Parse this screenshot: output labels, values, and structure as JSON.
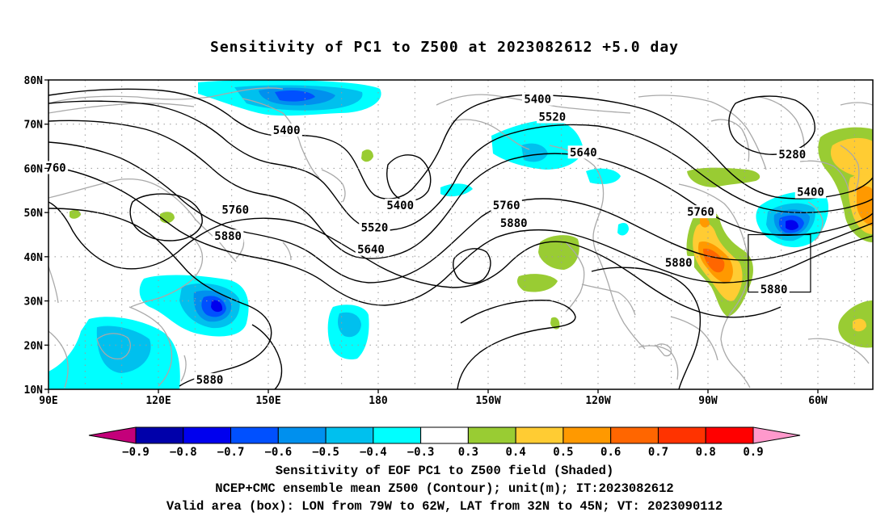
{
  "title": "Sensitivity of PC1 to Z500 at 2023082612 +5.0 day",
  "axes": {
    "lat_labels": [
      "80N",
      "70N",
      "60N",
      "50N",
      "40N",
      "30N",
      "20N",
      "10N"
    ],
    "lon_labels": [
      "90E",
      "120E",
      "150E",
      "180",
      "150W",
      "120W",
      "90W",
      "60W"
    ]
  },
  "contour_labels": [
    {
      "text": "5400",
      "lon": 155,
      "lat": 68.5
    },
    {
      "text": "5400",
      "lon": 186,
      "lat": 51.5
    },
    {
      "text": "5400",
      "lon": -136.5,
      "lat": 75.5
    },
    {
      "text": "5520",
      "lon": -132.5,
      "lat": 71.5
    },
    {
      "text": "5640",
      "lon": -124,
      "lat": 63.5
    },
    {
      "text": "5280",
      "lon": -67,
      "lat": 63
    },
    {
      "text": "5400",
      "lon": -62,
      "lat": 54.5
    },
    {
      "text": "5760",
      "lon": -92,
      "lat": 50
    },
    {
      "text": "5880",
      "lon": -98,
      "lat": 38.5
    },
    {
      "text": "5880",
      "lon": -72,
      "lat": 32.5
    },
    {
      "text": "5760",
      "lon": -145,
      "lat": 51.5
    },
    {
      "text": "5880",
      "lon": -143,
      "lat": 47.5
    },
    {
      "text": "5520",
      "lon": 179,
      "lat": 46.5
    },
    {
      "text": "5640",
      "lon": 178,
      "lat": 41.5
    },
    {
      "text": "5760",
      "lon": 141,
      "lat": 50.5
    },
    {
      "text": "5880",
      "lon": 139,
      "lat": 44.5
    },
    {
      "text": "5880",
      "lon": 134,
      "lat": 12
    },
    {
      "text": "760",
      "lon": 92,
      "lat": 60
    }
  ],
  "colorbar": {
    "labels": [
      "−0.9",
      "−0.8",
      "−0.7",
      "−0.6",
      "−0.5",
      "−0.4",
      "−0.3",
      "0.3",
      "0.4",
      "0.5",
      "0.6",
      "0.7",
      "0.8",
      "0.9"
    ],
    "colors": [
      "#c4007a",
      "#0000aa",
      "#0000ee",
      "#0050ff",
      "#0090ee",
      "#00c0ee",
      "#00ffff",
      "#ffffff",
      "#99cc33",
      "#ffcc33",
      "#ff9900",
      "#ff6600",
      "#ff3300",
      "#ff0000",
      "#ff99cc"
    ]
  },
  "valid_box": {
    "lon_min": -79,
    "lon_max": -62,
    "lat_min": 32,
    "lat_max": 45
  },
  "captions": {
    "line1": "Sensitivity of EOF PC1 to Z500 field (Shaded)",
    "line2": "NCEP+CMC ensemble mean Z500 (Contour); unit(m); IT:2023082612",
    "line3": "Valid area (box): LON from 79W to 62W, LAT from 32N to 45N; VT: 2023090112"
  }
}
